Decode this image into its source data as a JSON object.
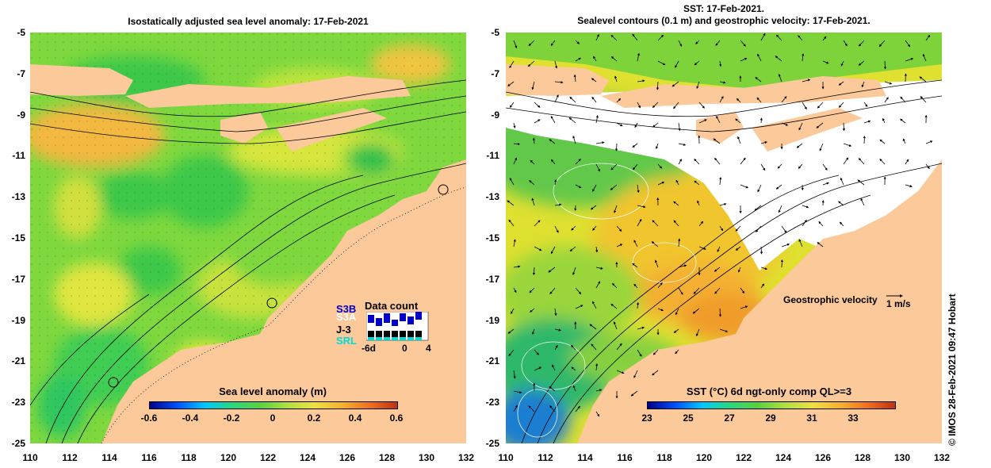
{
  "left_panel": {
    "title": "Isostatically adjusted sea level anomaly: 17-Feb-2021",
    "colorbar": {
      "title": "Sea level anomaly (m)",
      "ticks": [
        "-0.6",
        "-0.4",
        "-0.2",
        "0",
        "0.2",
        "0.4",
        "0.6"
      ]
    },
    "data_count": {
      "title": "Data count",
      "satellites": [
        "S3B",
        "S3A",
        "J-3",
        "SRL"
      ],
      "axis": [
        "-6d",
        "0",
        "4"
      ],
      "satellite_colors": [
        "#0000c8",
        "#ffffff",
        "#000000",
        "#00dcdc"
      ]
    }
  },
  "right_panel": {
    "title_line1": "SST: 17-Feb-2021.",
    "title_line2": "Sealevel contours (0.1 m) and geostrophic velocity: 17-Feb-2021.",
    "colorbar": {
      "title": "SST (°C) 6d ngt-only comp QL>=3",
      "ticks": [
        "23",
        "25",
        "27",
        "29",
        "31",
        "33"
      ]
    },
    "velocity_label": "Geostrophic velocity",
    "velocity_scale": "1 m/s"
  },
  "axes": {
    "y_ticks": [
      "-5",
      "-7",
      "-9",
      "-11",
      "-13",
      "-15",
      "-17",
      "-19",
      "-21",
      "-23",
      "-25"
    ],
    "x_ticks": [
      "110",
      "112",
      "114",
      "116",
      "118",
      "120",
      "122",
      "124",
      "126",
      "128",
      "130",
      "132"
    ]
  },
  "credit": "© IMOS 28-Feb-2021 09:47 Hobart",
  "colors": {
    "land": "#fbc99a",
    "sla_neutral": "#6ad44a",
    "sst_cloud": "#ffffff"
  }
}
